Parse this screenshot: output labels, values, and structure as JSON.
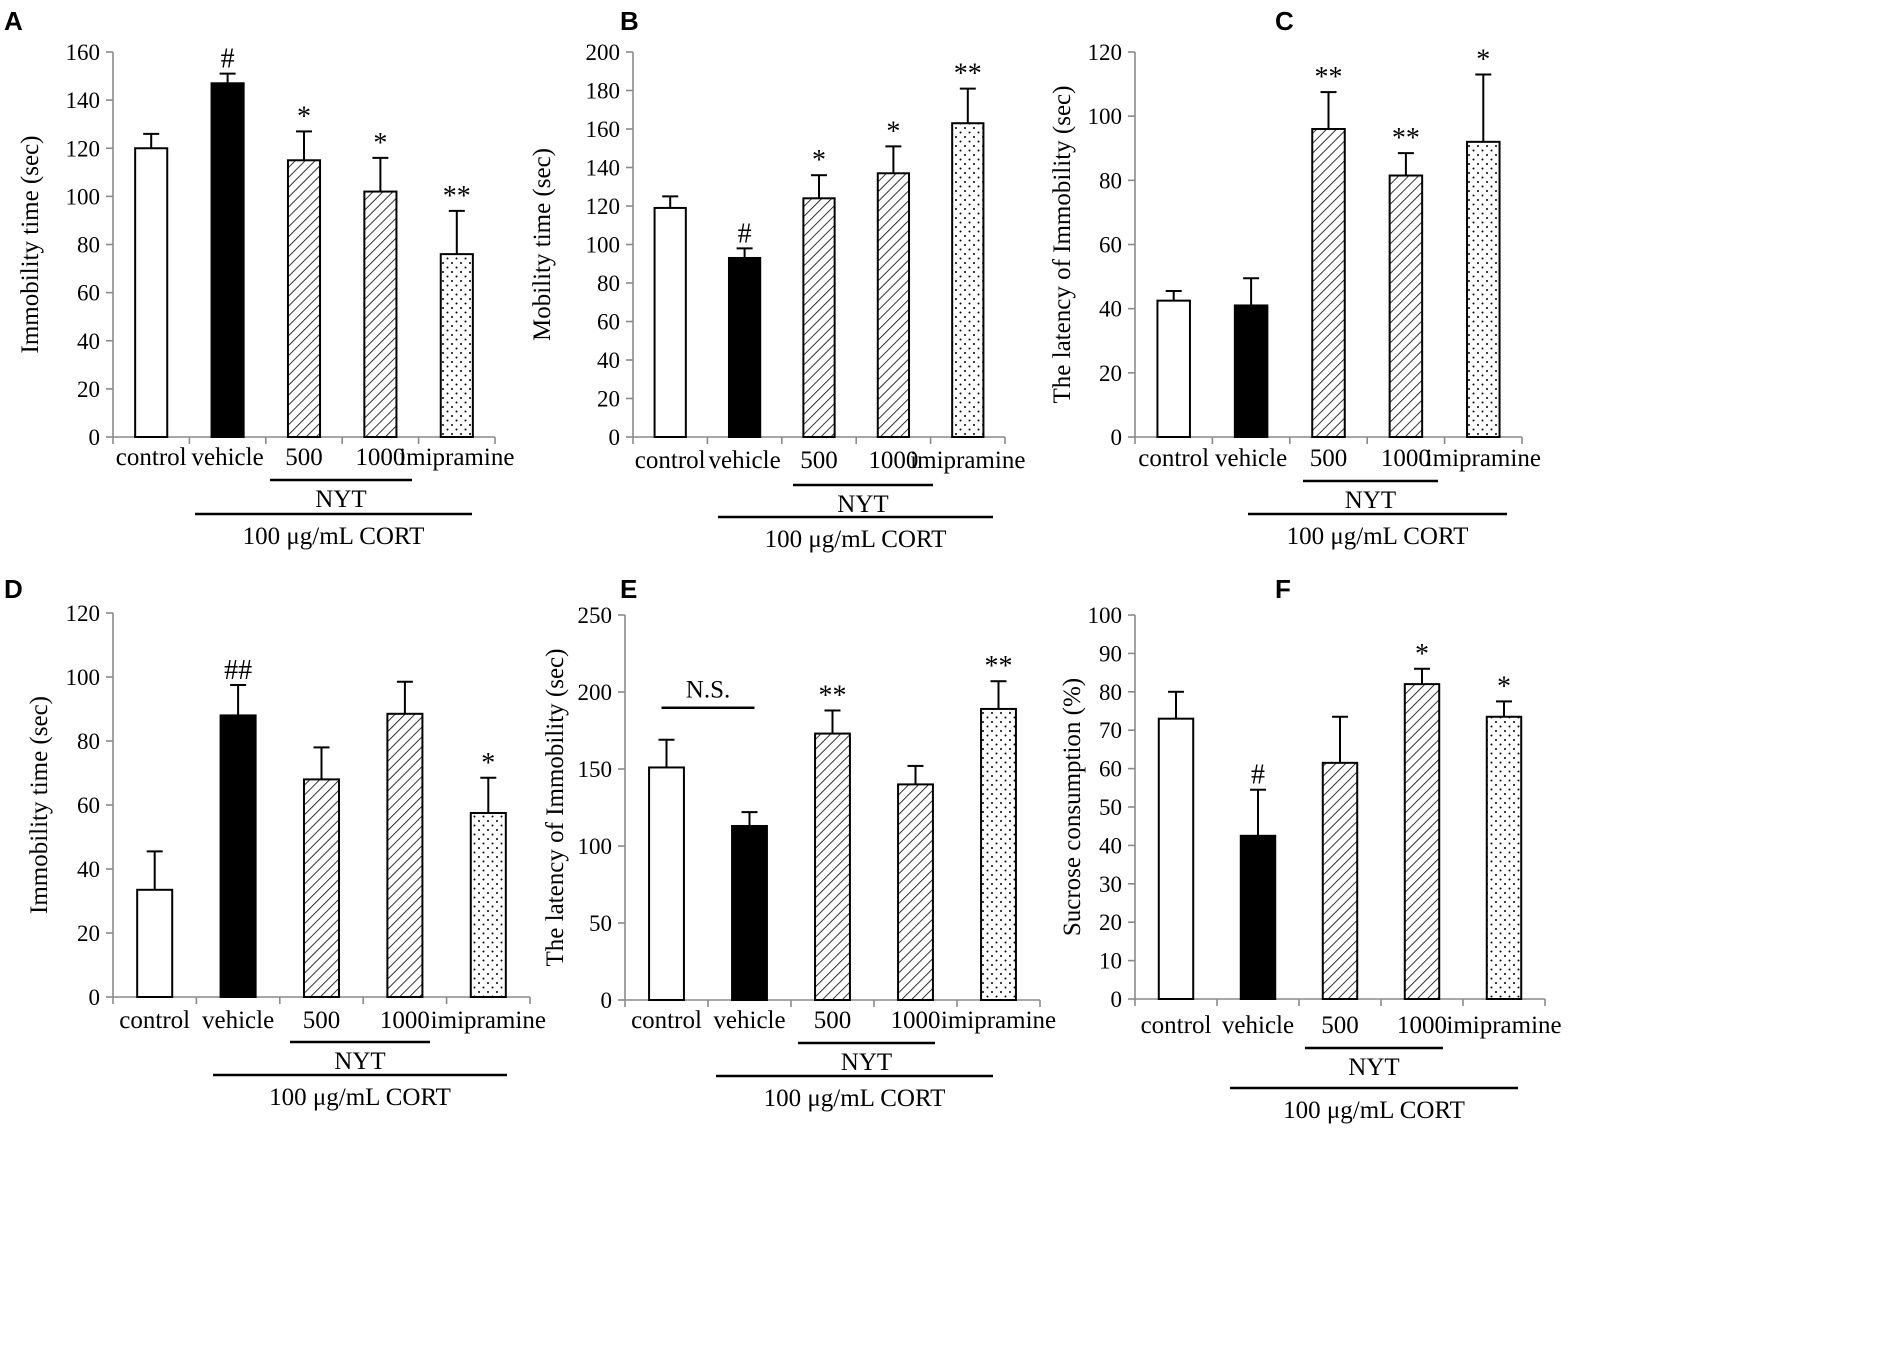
{
  "colors": {
    "background": "#ffffff",
    "bar_stroke": "#000000",
    "vehicle_fill": "#000000",
    "axis": "#8a8a8a"
  },
  "fill_styles": [
    "empty",
    "solid",
    "hatch",
    "hatch",
    "dots"
  ],
  "groups": {
    "nyt": "NYT",
    "cort": "100 μg/mL CORT"
  },
  "chart_data": [
    {
      "panel": "A",
      "type": "bar",
      "categories": [
        "control",
        "vehicle",
        "500",
        "1000",
        "imipramine"
      ],
      "values": [
        120,
        147,
        115,
        102,
        76
      ],
      "errors": [
        6,
        4,
        12,
        14,
        18
      ],
      "significance": [
        "",
        "#",
        "*",
        "*",
        "**"
      ],
      "ylabel": "Immobility  time  (sec)",
      "ylim": [
        0,
        160
      ],
      "yticks": [
        "0",
        "20",
        "40",
        "60",
        "80",
        "100",
        "120",
        "140",
        "160"
      ]
    },
    {
      "panel": "B",
      "type": "bar",
      "categories": [
        "control",
        "vehicle",
        "500",
        "1000",
        "imipramine"
      ],
      "values": [
        119,
        93,
        124,
        137,
        163
      ],
      "errors": [
        6,
        5,
        12,
        14,
        18
      ],
      "significance": [
        "",
        "#",
        "*",
        "*",
        "**"
      ],
      "ylabel": "Mobility  time  (sec)",
      "ylim": [
        0,
        200
      ],
      "yticks": [
        "0",
        "20",
        "40",
        "60",
        "80",
        "100",
        "120",
        "140",
        "160",
        "180",
        "200"
      ]
    },
    {
      "panel": "C",
      "type": "bar",
      "categories": [
        "control",
        "vehicle",
        "500",
        "1000",
        "imipramine"
      ],
      "values": [
        42.5,
        41,
        96,
        81.5,
        92
      ],
      "errors": [
        3,
        8.5,
        11.5,
        7,
        21
      ],
      "significance": [
        "",
        "",
        "**",
        "**",
        "*"
      ],
      "ylabel": "The latency of Immobility  (sec)",
      "ylim": [
        0,
        120
      ],
      "yticks": [
        "0",
        "20",
        "40",
        "60",
        "80",
        "100",
        "120"
      ]
    },
    {
      "panel": "D",
      "type": "bar",
      "categories": [
        "control",
        "vehicle",
        "500",
        "1000",
        "imipramine"
      ],
      "values": [
        33.5,
        88,
        68,
        88.5,
        57.5
      ],
      "errors": [
        12,
        9.5,
        10,
        10,
        11
      ],
      "significance": [
        "",
        "##",
        "",
        "",
        "*"
      ],
      "ylabel": "Immobility  time  (sec)",
      "ylim": [
        0,
        120
      ],
      "yticks": [
        "0",
        "20",
        "40",
        "60",
        "80",
        "100",
        "120"
      ]
    },
    {
      "panel": "E",
      "type": "bar",
      "categories": [
        "control",
        "vehicle",
        "500",
        "1000",
        "imipramine"
      ],
      "values": [
        151,
        113,
        173,
        140,
        189
      ],
      "errors": [
        18,
        9,
        15,
        12,
        18
      ],
      "significance": [
        "",
        "",
        "**",
        "",
        "**"
      ],
      "annotation": "N.S.",
      "ylabel": "The latency of Immobility  (sec)",
      "ylim": [
        0,
        250
      ],
      "yticks": [
        "0",
        "50",
        "100",
        "150",
        "200",
        "250"
      ]
    },
    {
      "panel": "F",
      "type": "bar",
      "categories": [
        "control",
        "vehicle",
        "500",
        "1000",
        "imipramine"
      ],
      "values": [
        73,
        42.5,
        61.5,
        82,
        73.5
      ],
      "errors": [
        7,
        12,
        12,
        4,
        4
      ],
      "significance": [
        "",
        "#",
        "",
        "*",
        "*"
      ],
      "ylabel": "Sucrose consumption  (%)",
      "ylim": [
        0,
        100
      ],
      "yticks": [
        "0",
        "10",
        "20",
        "30",
        "40",
        "50",
        "60",
        "70",
        "80",
        "90",
        "100"
      ]
    }
  ]
}
